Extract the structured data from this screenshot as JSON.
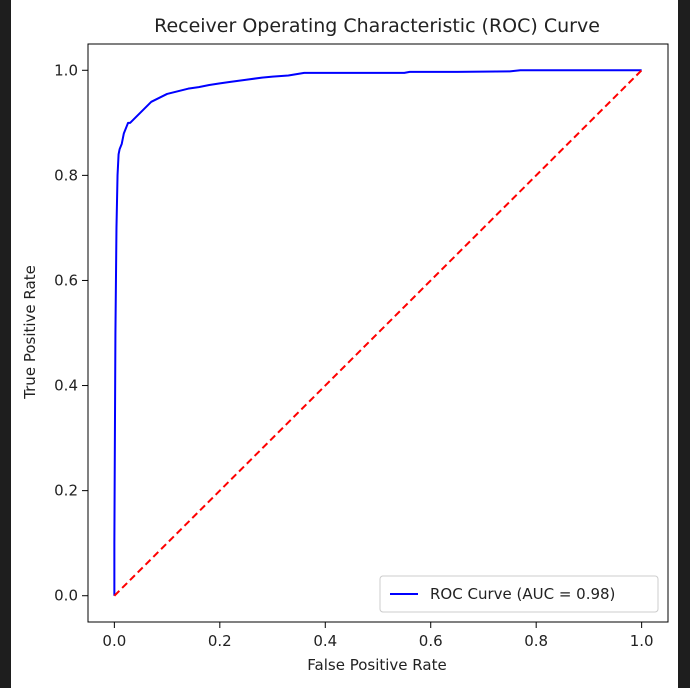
{
  "chart_data": {
    "type": "line",
    "title": "Receiver Operating Characteristic (ROC) Curve",
    "xlabel": "False Positive Rate",
    "ylabel": "True Positive Rate",
    "xlim": [
      -0.05,
      1.05
    ],
    "ylim": [
      -0.05,
      1.05
    ],
    "xticks": [
      0.0,
      0.2,
      0.4,
      0.6,
      0.8,
      1.0
    ],
    "yticks": [
      0.0,
      0.2,
      0.4,
      0.6,
      0.8,
      1.0
    ],
    "xtick_labels": [
      "0.0",
      "0.2",
      "0.4",
      "0.6",
      "0.8",
      "1.0"
    ],
    "ytick_labels": [
      "0.0",
      "0.2",
      "0.4",
      "0.6",
      "0.8",
      "1.0"
    ],
    "grid": false,
    "legend_position": "lower-right",
    "series": [
      {
        "name": "ROC Curve (AUC = 0.98)",
        "color": "#0000ff",
        "style": "solid",
        "x": [
          0.0,
          0.0,
          0.002,
          0.004,
          0.006,
          0.008,
          0.01,
          0.014,
          0.018,
          0.022,
          0.026,
          0.03,
          0.035,
          0.04,
          0.045,
          0.05,
          0.06,
          0.07,
          0.08,
          0.09,
          0.1,
          0.12,
          0.14,
          0.16,
          0.18,
          0.2,
          0.22,
          0.25,
          0.28,
          0.3,
          0.33,
          0.36,
          0.45,
          0.55,
          0.56,
          0.65,
          0.75,
          0.77,
          1.0
        ],
        "y": [
          0.0,
          0.1,
          0.5,
          0.7,
          0.8,
          0.84,
          0.85,
          0.86,
          0.88,
          0.89,
          0.9,
          0.9,
          0.905,
          0.91,
          0.915,
          0.92,
          0.93,
          0.94,
          0.945,
          0.95,
          0.955,
          0.96,
          0.965,
          0.968,
          0.972,
          0.975,
          0.978,
          0.982,
          0.986,
          0.988,
          0.99,
          0.995,
          0.995,
          0.995,
          0.997,
          0.997,
          0.998,
          1.0,
          1.0
        ]
      },
      {
        "name": "",
        "color": "#ff0000",
        "style": "dashed",
        "x": [
          0.0,
          1.0
        ],
        "y": [
          0.0,
          1.0
        ]
      }
    ]
  }
}
